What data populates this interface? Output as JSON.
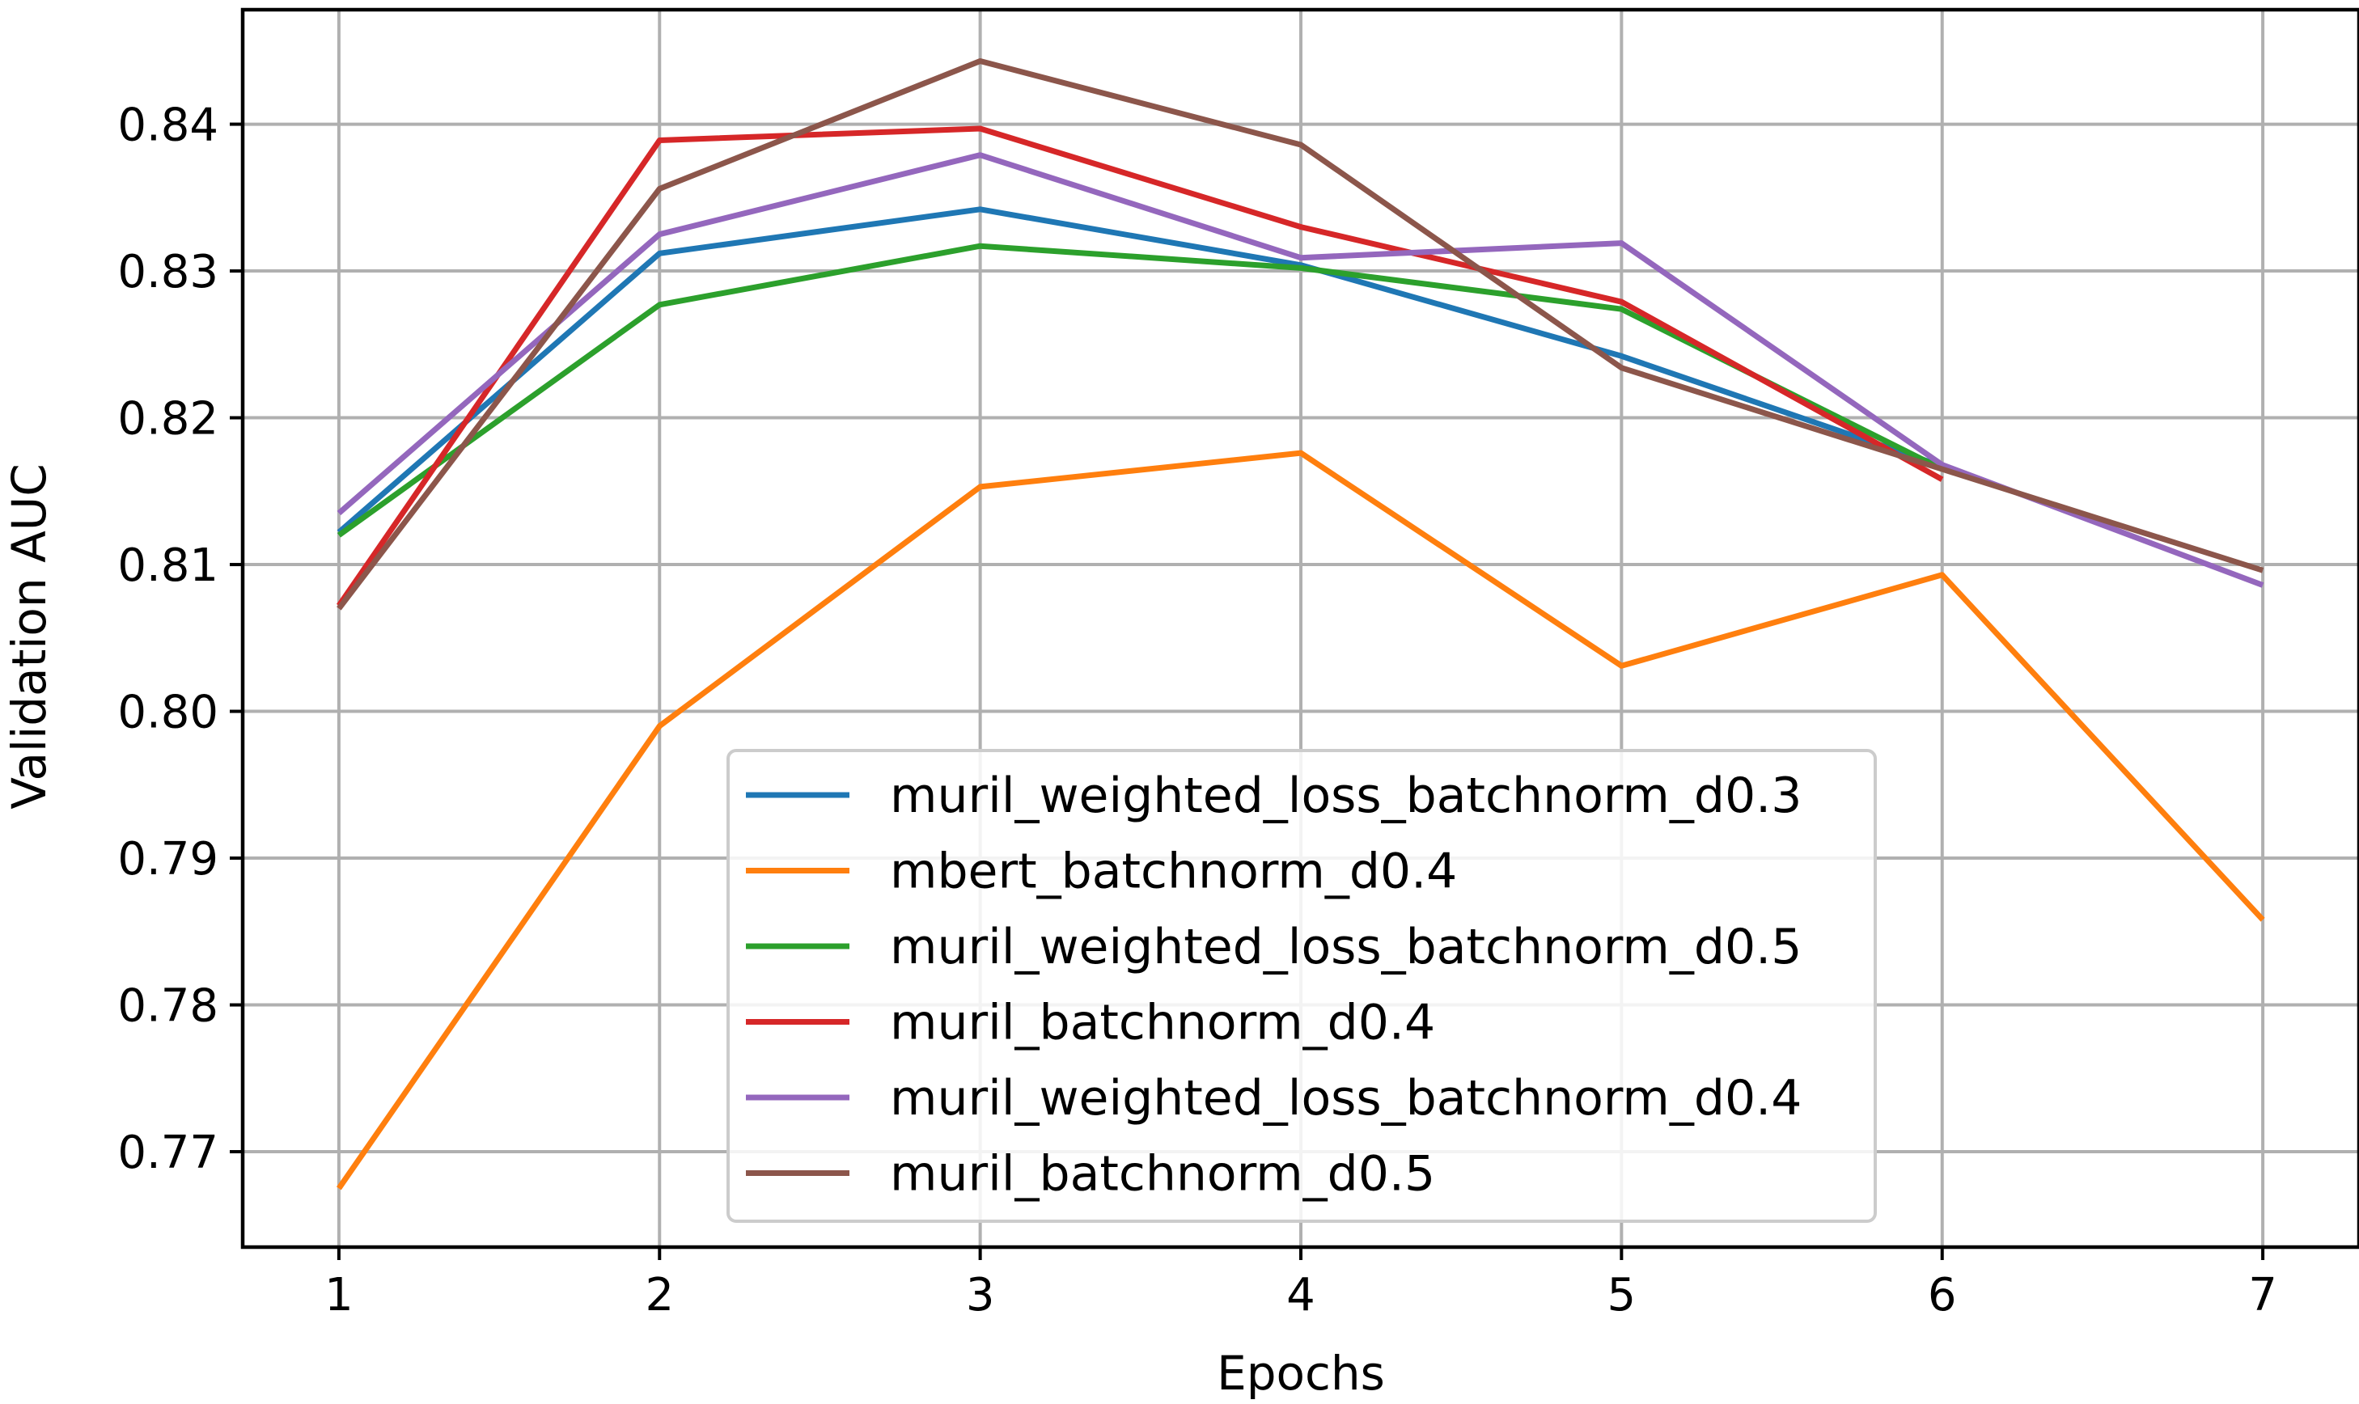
{
  "chart_data": {
    "type": "line",
    "title": "",
    "xlabel": "Epochs",
    "ylabel": "Validation AUC",
    "x": [
      1,
      2,
      3,
      4,
      5,
      6,
      7
    ],
    "xlim": [
      0.7,
      7.3
    ],
    "ylim": [
      0.7635,
      0.8478
    ],
    "xticks": [
      1,
      2,
      3,
      4,
      5,
      6,
      7
    ],
    "xtick_labels": [
      "1",
      "2",
      "3",
      "4",
      "5",
      "6",
      "7"
    ],
    "yticks": [
      0.77,
      0.78,
      0.79,
      0.8,
      0.81,
      0.82,
      0.83,
      0.84
    ],
    "ytick_labels": [
      "0.77",
      "0.78",
      "0.79",
      "0.80",
      "0.81",
      "0.82",
      "0.83",
      "0.84"
    ],
    "grid": true,
    "legend_position": "lower-center",
    "series": [
      {
        "name": "muril_weighted_loss_batchnorm_d0.3",
        "color": "#1f77b4",
        "values": [
          0.8122,
          0.8312,
          0.8342,
          0.8304,
          0.8242,
          0.8167,
          null
        ]
      },
      {
        "name": "mbert_batchnorm_d0.4",
        "color": "#ff7f0e",
        "values": [
          0.7675,
          0.799,
          0.8153,
          0.8176,
          0.8031,
          0.8093,
          0.7858
        ]
      },
      {
        "name": "muril_weighted_loss_batchnorm_d0.5",
        "color": "#2ca02c",
        "values": [
          0.812,
          0.8277,
          0.8317,
          0.8302,
          0.8274,
          0.8165,
          null
        ]
      },
      {
        "name": "muril_batchnorm_d0.4",
        "color": "#d62728",
        "values": [
          0.8072,
          0.8389,
          0.8397,
          0.833,
          0.8279,
          0.8158,
          null
        ]
      },
      {
        "name": "muril_weighted_loss_batchnorm_d0.4",
        "color": "#9467bd",
        "values": [
          0.8135,
          0.8325,
          0.8379,
          0.8309,
          0.8319,
          0.8168,
          0.8086
        ]
      },
      {
        "name": "muril_batchnorm_d0.5",
        "color": "#8c564b",
        "values": [
          0.807,
          0.8356,
          0.8443,
          0.8386,
          0.8234,
          0.8165,
          0.8096
        ]
      }
    ]
  }
}
